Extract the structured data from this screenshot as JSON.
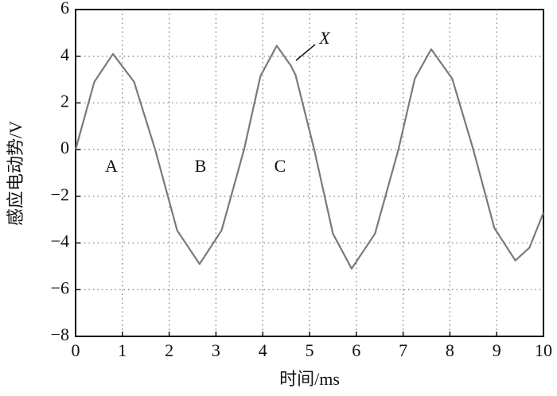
{
  "chart_data": {
    "type": "line",
    "x_label": "时间/ms",
    "y_label": "感应电动势/V",
    "x": [
      0,
      0.4,
      0.8,
      1.25,
      1.7,
      2.17,
      2.65,
      3.12,
      3.6,
      3.95,
      4.3,
      4.6,
      4.7,
      5.1,
      5.5,
      5.9,
      6.4,
      6.9,
      7.25,
      7.6,
      8.05,
      8.5,
      8.95,
      9.4,
      9.7,
      10
    ],
    "series": [
      {
        "color": "#7a7a7a",
        "values": [
          0,
          2.9,
          4.1,
          2.9,
          0,
          -3.46,
          -4.9,
          -3.46,
          0,
          3.15,
          4.45,
          3.6,
          3.2,
          0,
          -3.6,
          -5.1,
          -3.6,
          0,
          3.04,
          4.3,
          3.04,
          0,
          -3.36,
          -4.75,
          -4.2,
          -2.7
        ]
      }
    ],
    "xlim": [
      0,
      10
    ],
    "xticks": [
      0,
      1,
      2,
      3,
      4,
      5,
      6,
      7,
      8,
      9,
      10
    ],
    "ylim": [
      -8,
      6
    ],
    "yticks": [
      {
        "value": -8,
        "label": "−8"
      },
      {
        "value": -6,
        "label": "−6"
      },
      {
        "value": -4,
        "label": "−4"
      },
      {
        "value": -2,
        "label": "−2"
      },
      0,
      2,
      4,
      6
    ],
    "grid": true,
    "annotations": [
      "A",
      "B",
      "C",
      "X"
    ]
  }
}
